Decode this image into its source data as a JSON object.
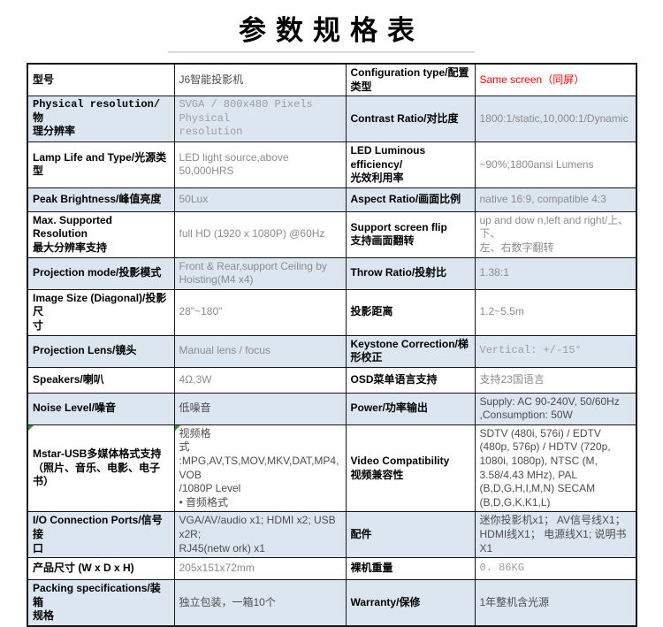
{
  "title": "参数规格表",
  "colors": {
    "band_blue": "#dce6f1",
    "value_gray": "#8c8c8c",
    "value_dark": "#4d4d4d",
    "accent_red": "#ff0000",
    "grid_black": "#161616",
    "title_rule_gray": "#d9d9d9",
    "error_marker_green": "#2e9a2e"
  },
  "table": {
    "rows": [
      {
        "cells": [
          {
            "text": "型号",
            "cls": "label",
            "name": "model-label"
          },
          {
            "text": "J6智能投影机",
            "cls": "dark",
            "name": "model-value"
          },
          {
            "text": "Configuration type/配置\n类型",
            "cls": "label",
            "name": "configuration-type-label"
          },
          {
            "text": "Same screen（同屏）",
            "cls": "red",
            "name": "configuration-type-value"
          }
        ]
      },
      {
        "cells": [
          {
            "text": "Physical resolution/物\n理分辨率",
            "cls": "label mono",
            "name": "physical-resolution-label"
          },
          {
            "text": "SVGA / 800x480 Pixels Physical\nresolution",
            "cls": "mono light",
            "name": "physical-resolution-value"
          },
          {
            "text": "Contrast Ratio/对比度",
            "cls": "label",
            "name": "contrast-ratio-label"
          },
          {
            "text": "1800:1/static,10,000:1/Dynamic",
            "cls": "gray",
            "name": "contrast-ratio-value"
          }
        ]
      },
      {
        "cells": [
          {
            "text": "Lamp Life and Type/光源类\n型",
            "cls": "label",
            "name": "lamp-life-label"
          },
          {
            "text": "LED light source,above 50,000HRS",
            "cls": "gray",
            "name": "lamp-life-value"
          },
          {
            "text": "LED Luminous efficiency/\n光效利用率",
            "cls": "label",
            "name": "luminous-efficiency-label"
          },
          {
            "text": "~90%;1800ansi Lumens",
            "cls": "gray",
            "name": "luminous-efficiency-value"
          }
        ]
      },
      {
        "cells": [
          {
            "text": "Peak Brightness/峰值亮度",
            "cls": "label",
            "name": "peak-brightness-label"
          },
          {
            "text": "50Lux",
            "cls": "gray",
            "name": "peak-brightness-value"
          },
          {
            "text": "Aspect Ratio/画面比例",
            "cls": "label",
            "name": "aspect-ratio-label"
          },
          {
            "text": "native 16:9, compatible 4:3",
            "cls": "gray",
            "name": "aspect-ratio-value"
          }
        ]
      },
      {
        "cells": [
          {
            "text": "Max. Supported Resolution\n最大分辨率支持",
            "cls": "label",
            "name": "max-resolution-label"
          },
          {
            "text": "full HD (1920 x 1080P) @60Hz",
            "cls": "gray",
            "name": "max-resolution-value"
          },
          {
            "text": "Support screen flip\n支持画面翻转",
            "cls": "label",
            "name": "screen-flip-label"
          },
          {
            "text": "up and dow n,left and right/上、下、\n左、右数字翻转",
            "cls": "gray",
            "name": "screen-flip-value"
          }
        ]
      },
      {
        "cells": [
          {
            "text": "Projection mode/投影模式",
            "cls": "label",
            "name": "projection-mode-label"
          },
          {
            "text": "Front & Rear,support Ceiling by\nHoisting(M4 x4)",
            "cls": "gray",
            "name": "projection-mode-value"
          },
          {
            "text": "Throw Ratio/投射比",
            "cls": "label",
            "name": "throw-ratio-label"
          },
          {
            "text": "1.38:1",
            "cls": "gray",
            "name": "throw-ratio-value"
          }
        ]
      },
      {
        "cells": [
          {
            "text": "Image Size (Diagonal)/投影尺\n寸",
            "cls": "label",
            "name": "image-size-label"
          },
          {
            "text": "28\"~180\"",
            "cls": "gray",
            "name": "image-size-value"
          },
          {
            "text": "投影距离",
            "cls": "label",
            "name": "projection-distance-label"
          },
          {
            "text": "1.2~5.5m",
            "cls": "gray",
            "name": "projection-distance-value"
          }
        ]
      },
      {
        "cells": [
          {
            "text": "Projection Lens/镜头",
            "cls": "label",
            "name": "projection-lens-label"
          },
          {
            "text": "Manual lens / focus",
            "cls": "gray",
            "name": "projection-lens-value"
          },
          {
            "text": "Keystone Correction/梯\n形校正",
            "cls": "label",
            "name": "keystone-correction-label"
          },
          {
            "text": "Vertical: +/-15°",
            "cls": "mono light",
            "name": "keystone-correction-value"
          }
        ]
      },
      {
        "cells": [
          {
            "text": "Speakers/喇叭",
            "cls": "label",
            "name": "speakers-label"
          },
          {
            "text": "4Ω,3W",
            "cls": "gray",
            "name": "speakers-value"
          },
          {
            "text": "OSD菜单语言支持",
            "cls": "label",
            "name": "osd-language-label"
          },
          {
            "text": "支持23国语言",
            "cls": "gray",
            "name": "osd-language-value"
          }
        ]
      },
      {
        "cells": [
          {
            "text": "Noise Level/噪音",
            "cls": "label",
            "name": "noise-level-label"
          },
          {
            "text": "低噪音",
            "cls": "dark",
            "name": "noise-level-value"
          },
          {
            "text": "Power/功率输出",
            "cls": "label",
            "name": "power-label"
          },
          {
            "text": "Supply: AC 90-240V, 50/60Hz\n,Consumption: 50W",
            "cls": "dark",
            "name": "power-value"
          }
        ]
      },
      {
        "cells": [
          {
            "text": "Mstar-USB多媒体格式支持\n（照片、音乐、电影、电子\n书）",
            "cls": "label",
            "name": "multimedia-format-label",
            "marker": true
          },
          {
            "text": "视频格\n式\n:MPG,AV,TS,MOV,MKV,DAT,MP4,VOB\n/1080P Level\n• 音频格式",
            "cls": "dark",
            "name": "multimedia-format-value",
            "marker": true
          },
          {
            "text": "Video Compatibility\n视频兼容性",
            "cls": "label",
            "name": "video-compatibility-label"
          },
          {
            "text": "SDTV (480i, 576i) / EDTV (480p, 576p) / HDTV (720p, 1080i, 1080p), NTSC (M, 3.58/4.43 MHz), PAL (B,D,G,H,I,M,N) SECAM (B,D,G,K,K1,L)",
            "cls": "dark",
            "name": "video-compatibility-value"
          }
        ]
      },
      {
        "cells": [
          {
            "text": "I/O Connection Ports/信号接\n口",
            "cls": "label",
            "name": "io-ports-label"
          },
          {
            "text": "VGA/AV/audio x1; HDMI x2; USB x2R;\nRJ45(netw ork) x1",
            "cls": "dark",
            "name": "io-ports-value"
          },
          {
            "text": "配件",
            "cls": "label",
            "name": "accessories-label"
          },
          {
            "text": "迷你投影机x1； AV信号线X1；\nHDMI线X1； 电源线X1; 说明书X1",
            "cls": "dark",
            "name": "accessories-value"
          }
        ]
      },
      {
        "cells": [
          {
            "text": "产品尺寸 (W x D x H)",
            "cls": "label",
            "name": "product-dimensions-label"
          },
          {
            "text": "205x151x72mm",
            "cls": "gray",
            "name": "product-dimensions-value"
          },
          {
            "text": "裸机重量",
            "cls": "label",
            "name": "net-weight-label"
          },
          {
            "text": "0. 86KG",
            "cls": "mono light",
            "name": "net-weight-value"
          }
        ]
      },
      {
        "cells": [
          {
            "text": "Packing specifications/装箱\n规格",
            "cls": "label",
            "name": "packing-spec-label"
          },
          {
            "text": "独立包装，一箱10个",
            "cls": "dark",
            "name": "packing-spec-value"
          },
          {
            "text": "Warranty/保修",
            "cls": "label",
            "name": "warranty-label"
          },
          {
            "text": "1年整机含光源",
            "cls": "dark",
            "name": "warranty-value"
          }
        ]
      }
    ]
  }
}
